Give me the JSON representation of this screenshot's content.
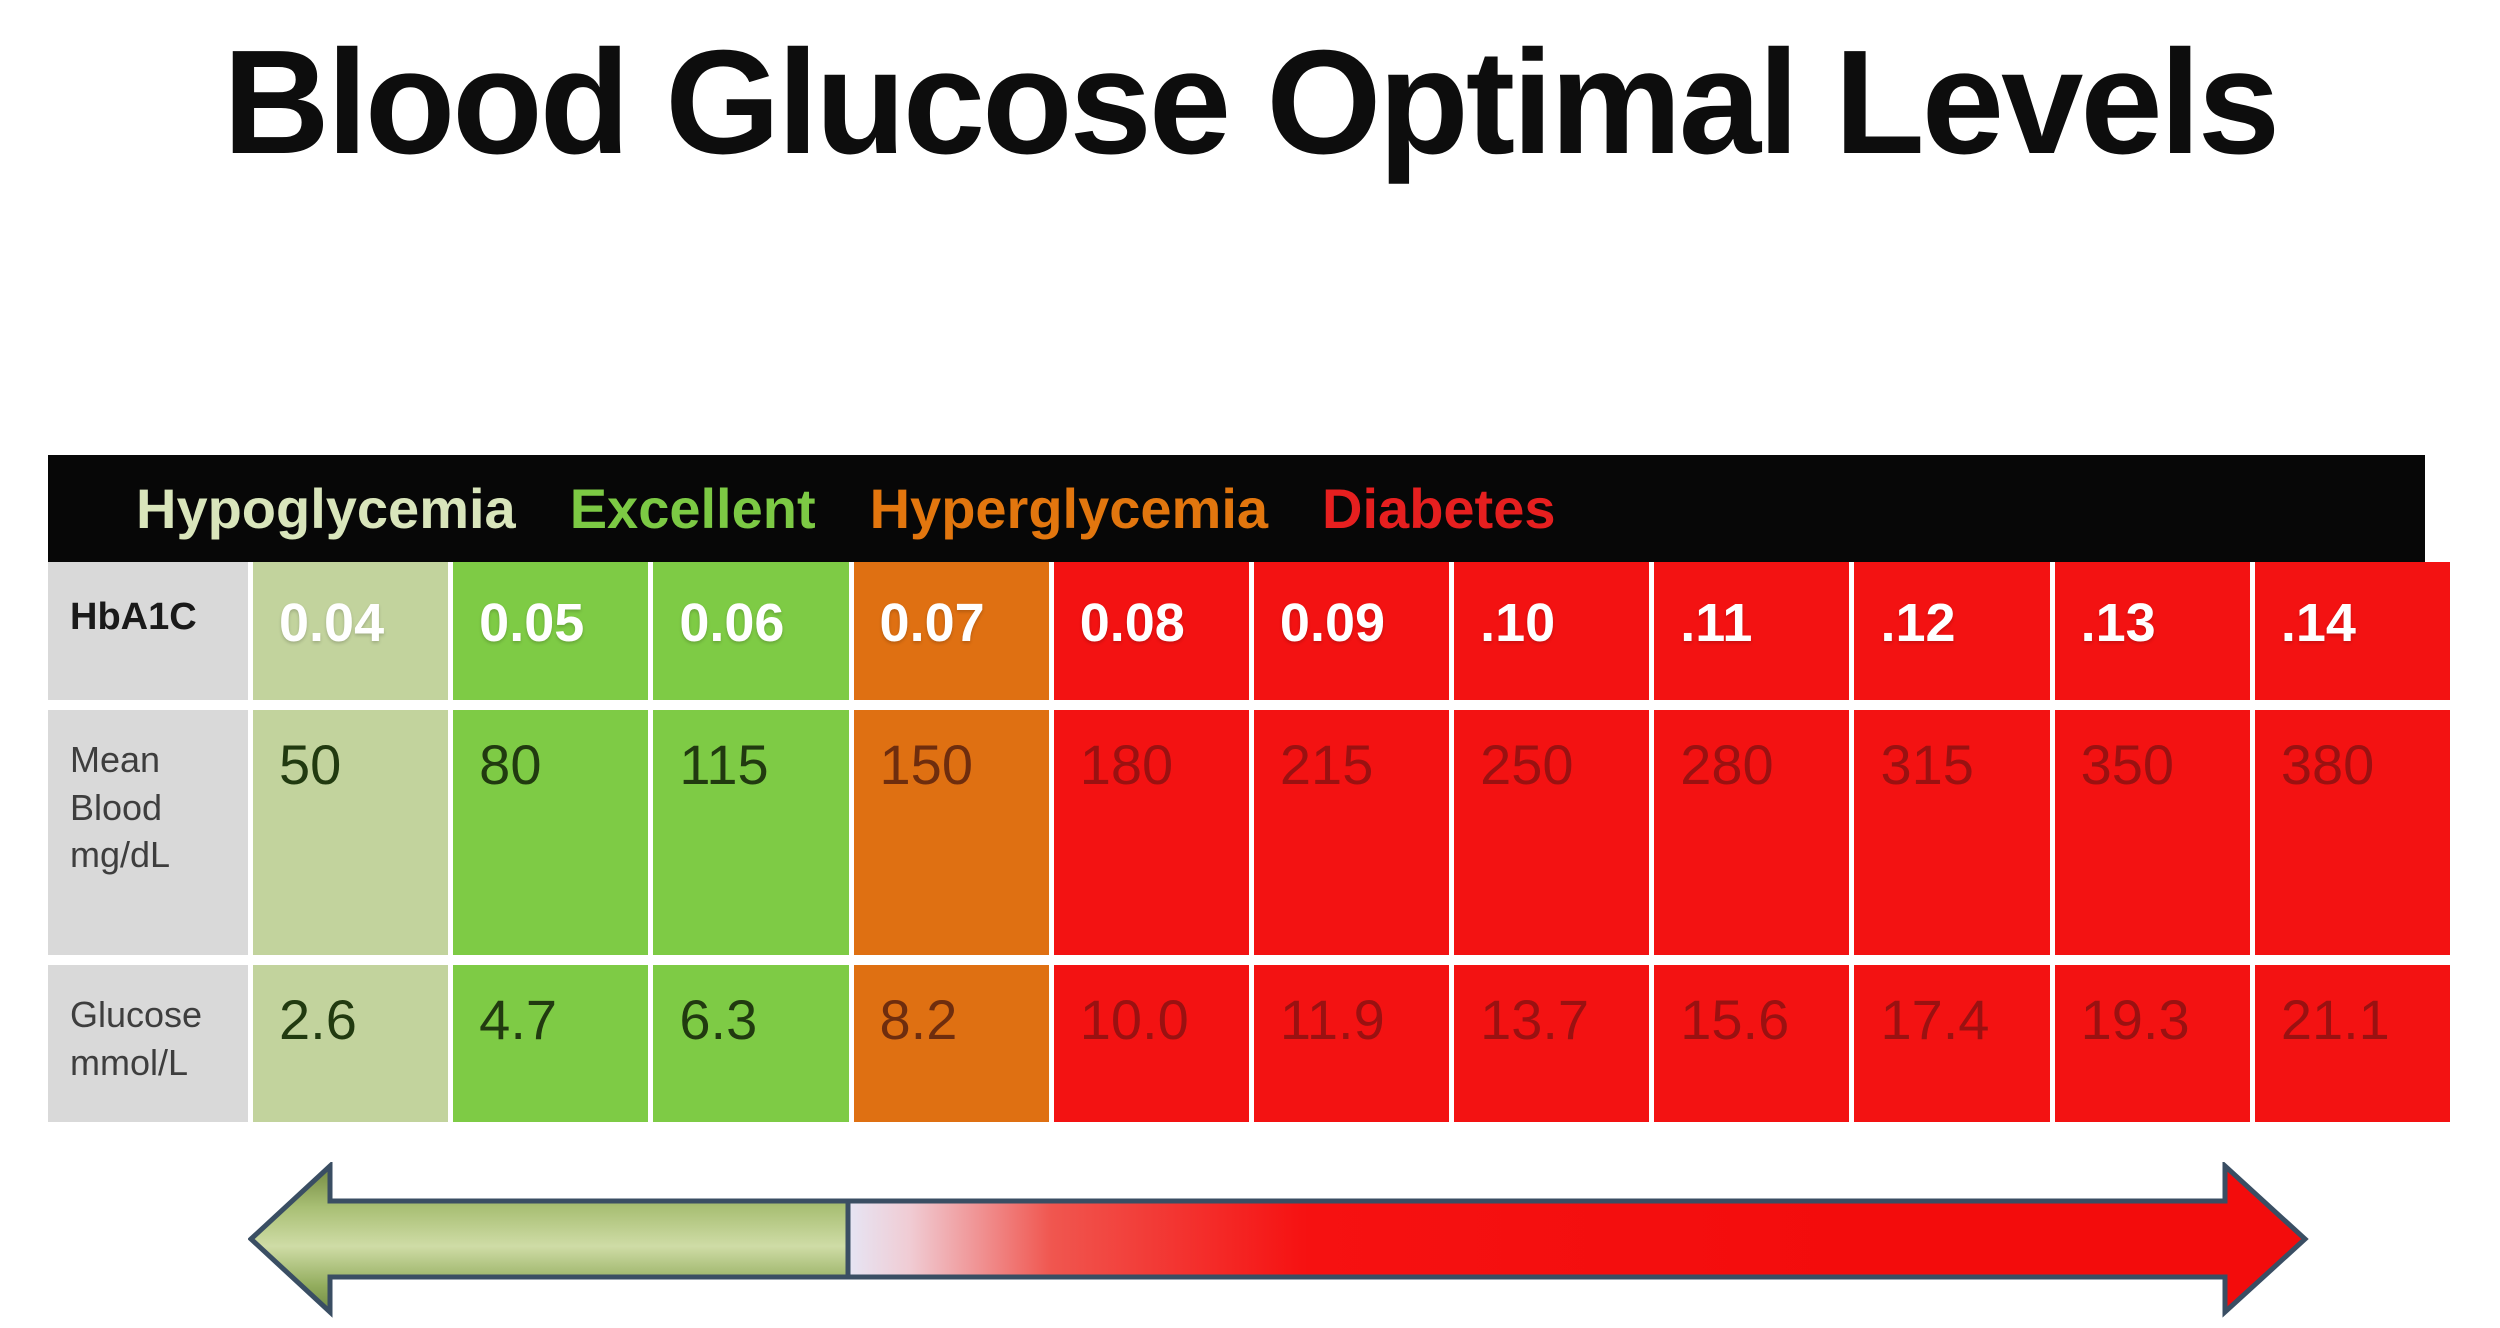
{
  "title": "Blood Glucose Optimal Levels",
  "legend": {
    "items": [
      {
        "label": "Hypoglycemia",
        "color": "#d9e5bb"
      },
      {
        "label": "Excellent",
        "color": "#7cc944"
      },
      {
        "label": "Hyperglycemia",
        "color": "#e2760e"
      },
      {
        "label": "Diabetes",
        "color": "#e61f1f"
      }
    ]
  },
  "table": {
    "header_label": "HbA1C",
    "header_values": [
      "0.04",
      "0.05",
      "0.06",
      "0.07",
      "0.08",
      "0.09",
      ".10",
      ".11",
      ".12",
      ".13",
      ".14"
    ],
    "zone_by_column": [
      "pale",
      "green",
      "green",
      "orange",
      "red",
      "red",
      "red",
      "red",
      "red",
      "red",
      "red"
    ],
    "rows": [
      {
        "label_lines": [
          "Mean",
          "Blood",
          "mg/dL"
        ],
        "values": [
          "50",
          "80",
          "115",
          "150",
          "180",
          "215",
          "250",
          "280",
          "315",
          "350",
          "380"
        ]
      },
      {
        "label_lines": [
          "Glucose",
          "mmol/L"
        ],
        "values": [
          "2.6",
          "4.7",
          "6.3",
          "8.2",
          "10.0",
          "11.9",
          "13.7",
          "15.6",
          "17.4",
          "19.3",
          "21.1"
        ]
      }
    ]
  },
  "colors": {
    "pale_green_cell": "#c2d39d",
    "green_cell": "#7ecb45",
    "orange_cell": "#df7012",
    "red_cell": "#f31212",
    "label_cell_bg": "#d9d9d9",
    "legend_bar_bg": "#070707",
    "arrow_green": "#a9c074",
    "arrow_red": "#f30c0c",
    "arrow_outline": "#3a4e63"
  },
  "chart_data": {
    "type": "table",
    "title": "Blood Glucose Optimal Levels",
    "columns_label": "HbA1C",
    "columns": [
      "0.04",
      "0.05",
      "0.06",
      "0.07",
      "0.08",
      "0.09",
      ".10",
      ".11",
      ".12",
      ".13",
      ".14"
    ],
    "rows": [
      {
        "label": "Mean Blood mg/dL",
        "values": [
          50,
          80,
          115,
          150,
          180,
          215,
          250,
          280,
          315,
          350,
          380
        ]
      },
      {
        "label": "Glucose mmol/L",
        "values": [
          2.6,
          4.7,
          6.3,
          8.2,
          10.0,
          11.9,
          13.7,
          15.6,
          17.4,
          19.3,
          21.1
        ]
      }
    ],
    "zones": [
      {
        "name": "Hypoglycemia",
        "columns": [
          "0.04"
        ],
        "color": "#c2d39d"
      },
      {
        "name": "Excellent",
        "columns": [
          "0.05",
          "0.06"
        ],
        "color": "#7ecb45"
      },
      {
        "name": "Hyperglycemia",
        "columns": [
          "0.07"
        ],
        "color": "#df7012"
      },
      {
        "name": "Diabetes",
        "columns": [
          "0.08",
          "0.09",
          ".10",
          ".11",
          ".12",
          ".13",
          ".14"
        ],
        "color": "#f31212"
      }
    ],
    "annotations": [
      "Double-headed arrow below table: green toward Hypoglycemia/Excellent side, red toward Diabetes side"
    ],
    "legend_position": "top-bar"
  }
}
